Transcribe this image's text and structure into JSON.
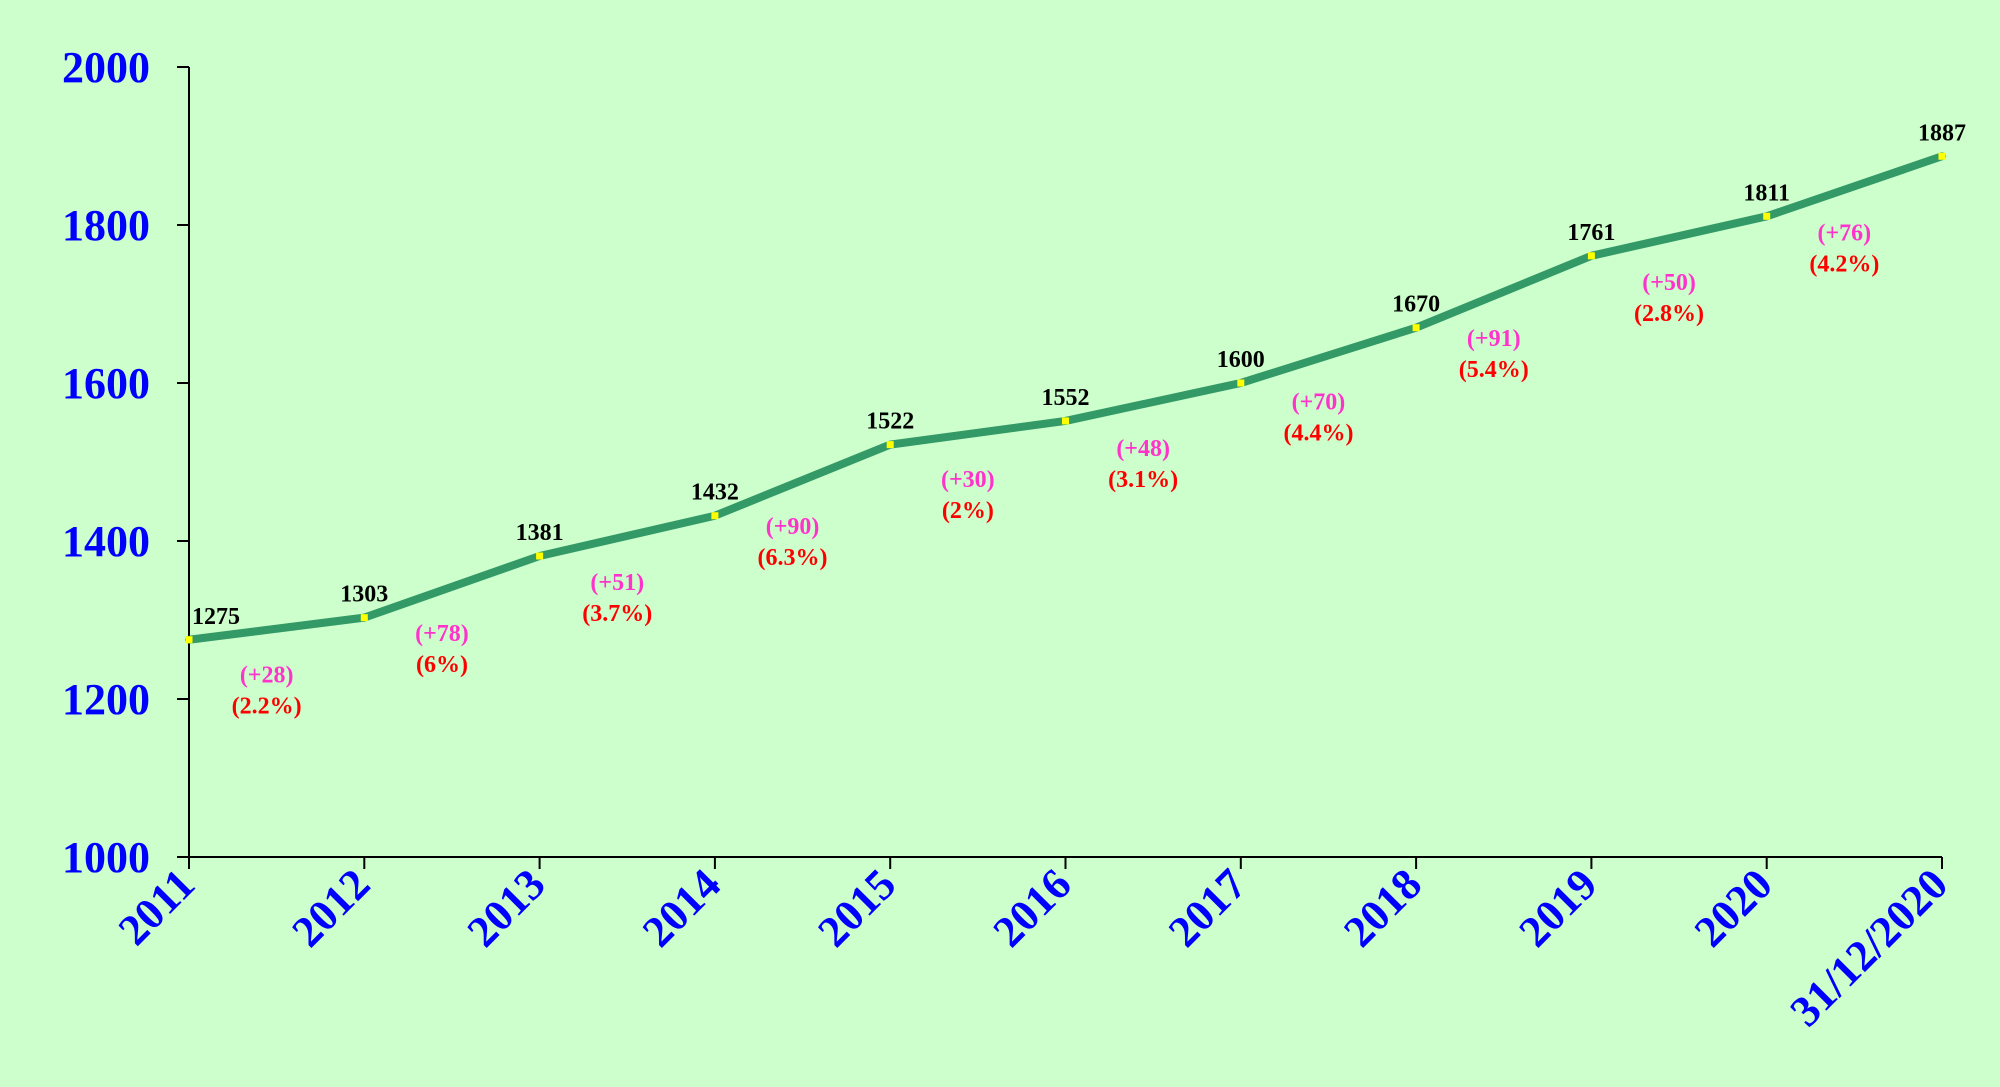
{
  "chart_data": {
    "type": "line",
    "title": "",
    "xlabel": "",
    "ylabel": "",
    "ylim": [
      1000,
      2000
    ],
    "yticks": [
      "1000",
      "1200",
      "1400",
      "1600",
      "1800",
      "2000"
    ],
    "categories": [
      "2011",
      "2012",
      "2013",
      "2014",
      "2015",
      "2016",
      "2017",
      "2018",
      "2019",
      "2020",
      "31/12/2020"
    ],
    "values": [
      1275,
      1303,
      1381,
      1432,
      1522,
      1552,
      1600,
      1670,
      1761,
      1811,
      1887
    ],
    "value_labels": [
      "1275",
      "1303",
      "1381",
      "1432",
      "1522",
      "1552",
      "1600",
      "1670",
      "1761",
      "1811",
      "1887"
    ],
    "changes": [
      {
        "delta": "(+28)",
        "percent": "(2.2%)"
      },
      {
        "delta": "(+78)",
        "percent": "(6%)"
      },
      {
        "delta": "(+51)",
        "percent": "(3.7%)"
      },
      {
        "delta": "(+90)",
        "percent": "(6.3%)"
      },
      {
        "delta": "(+30)",
        "percent": "(2%)"
      },
      {
        "delta": "(+48)",
        "percent": "(3.1%)"
      },
      {
        "delta": "(+70)",
        "percent": "(4.4%)"
      },
      {
        "delta": "(+91)",
        "percent": "(5.4%)"
      },
      {
        "delta": "(+50)",
        "percent": "(2.8%)"
      },
      {
        "delta": "(+76)",
        "percent": "(4.2%)"
      }
    ],
    "grid": false,
    "colors": {
      "background": "#ccffcc",
      "line": "#339966",
      "marker": "#ffff00",
      "axis_text": "#0000ff",
      "value_label": "#000000",
      "delta_label": "#ff33cc",
      "percent_label": "#ff0000"
    }
  }
}
